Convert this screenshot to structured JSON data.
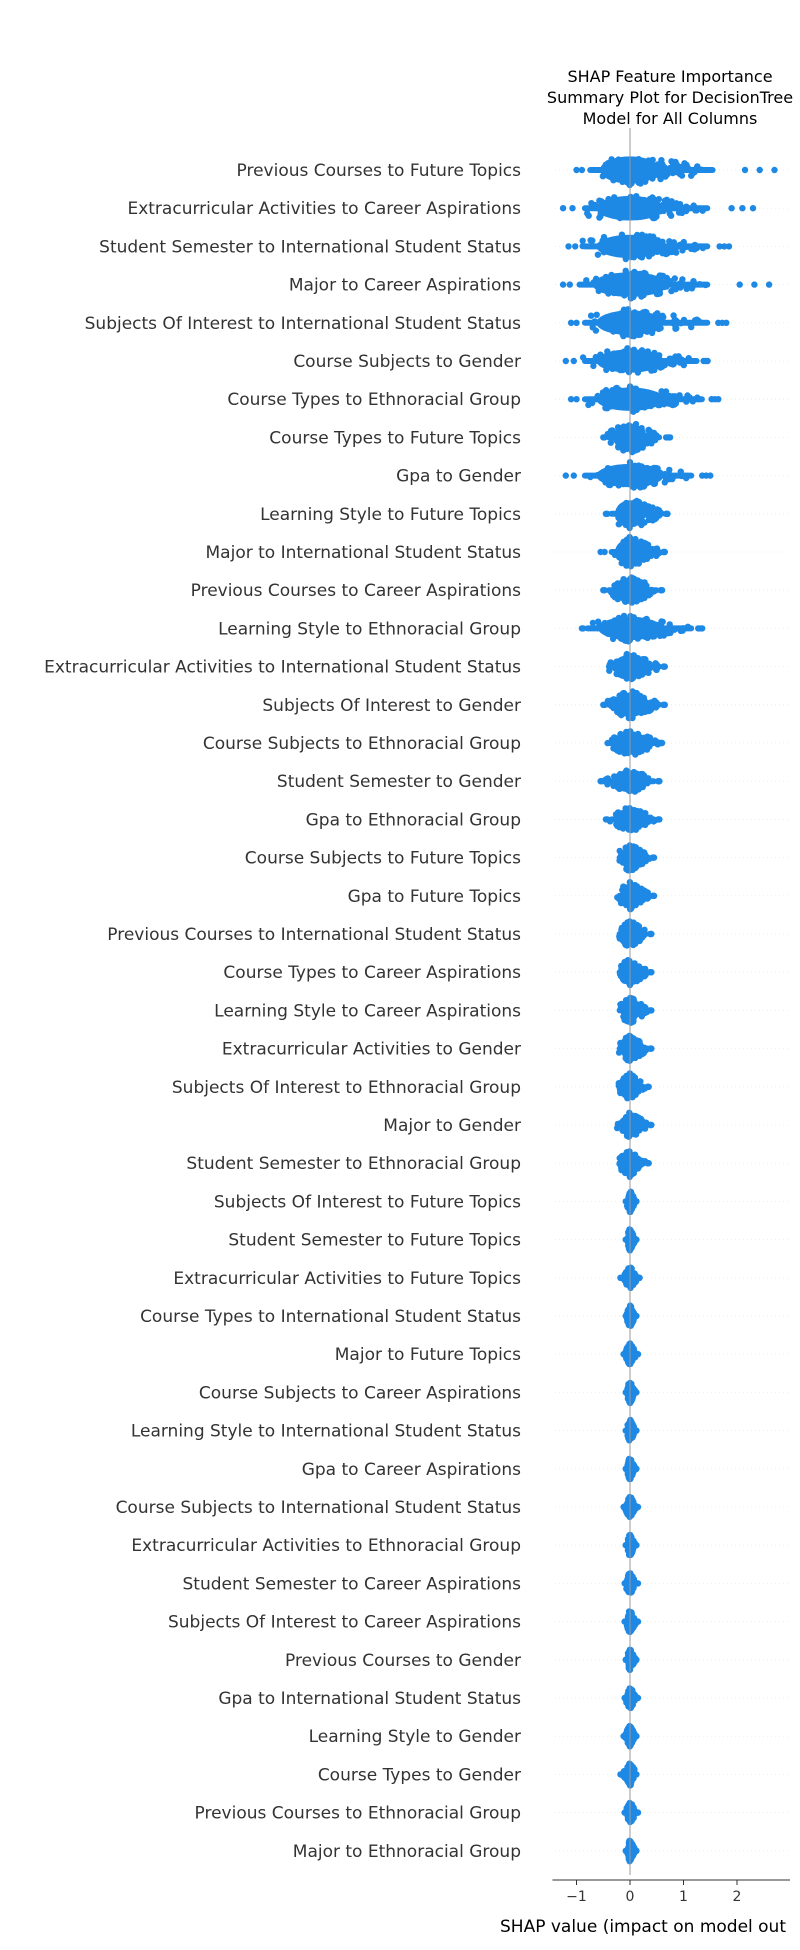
{
  "chart_data": {
    "type": "scatter",
    "subtype": "beeswarm",
    "title_lines": [
      "SHAP Feature Importance",
      "Summary Plot for DecisionTree",
      "Model for All Columns"
    ],
    "xlabel": "SHAP value (impact on model out",
    "x_ticks": [
      -1,
      0,
      1,
      2
    ],
    "x_tick_labels": [
      "−1",
      "0",
      "1",
      "2"
    ],
    "xlim": [
      -1.45,
      2.85
    ],
    "point_color": "#1e88e5",
    "grid": false,
    "features": [
      {
        "name": "Previous Courses to Future Topics",
        "min": -1.0,
        "max": 2.7,
        "core": [
          -0.8,
          1.6
        ],
        "halfheight": 0.42
      },
      {
        "name": "Extracurricular Activities to Career Aspirations",
        "min": -1.25,
        "max": 2.3,
        "core": [
          -0.9,
          1.5
        ],
        "halfheight": 0.38
      },
      {
        "name": "Student Semester to International Student Status",
        "min": -1.15,
        "max": 1.85,
        "core": [
          -0.9,
          1.5
        ],
        "halfheight": 0.36
      },
      {
        "name": "Major to Career Aspirations",
        "min": -1.25,
        "max": 2.6,
        "core": [
          -1.0,
          1.5
        ],
        "halfheight": 0.38
      },
      {
        "name": "Subjects Of Interest to International Student Status",
        "min": -1.1,
        "max": 1.8,
        "core": [
          -0.9,
          1.5
        ],
        "halfheight": 0.38
      },
      {
        "name": "Course Subjects to Gender",
        "min": -1.2,
        "max": 1.45,
        "core": [
          -0.9,
          1.3
        ],
        "halfheight": 0.36
      },
      {
        "name": "Course Types to Ethnoracial Group",
        "min": -1.1,
        "max": 1.65,
        "core": [
          -0.9,
          1.4
        ],
        "halfheight": 0.36
      },
      {
        "name": "Course Types to Future Topics",
        "min": -0.5,
        "max": 0.75,
        "core": [
          -0.45,
          0.6
        ],
        "halfheight": 0.42
      },
      {
        "name": "Gpa to Gender",
        "min": -1.2,
        "max": 1.5,
        "core": [
          -0.9,
          1.2
        ],
        "halfheight": 0.36
      },
      {
        "name": "Learning Style to Future Topics",
        "min": -0.45,
        "max": 0.7,
        "core": [
          -0.4,
          0.65
        ],
        "halfheight": 0.42
      },
      {
        "name": "Major to International Student Status",
        "min": -0.55,
        "max": 0.65,
        "core": [
          -0.4,
          0.6
        ],
        "halfheight": 0.4
      },
      {
        "name": "Previous Courses to Career Aspirations",
        "min": -0.5,
        "max": 0.6,
        "core": [
          -0.45,
          0.55
        ],
        "halfheight": 0.38
      },
      {
        "name": "Learning Style to Ethnoracial Group",
        "min": -0.9,
        "max": 1.35,
        "core": [
          -0.85,
          1.2
        ],
        "halfheight": 0.36
      },
      {
        "name": "Extracurricular Activities to International Student Status",
        "min": -0.45,
        "max": 0.65,
        "core": [
          -0.45,
          0.6
        ],
        "halfheight": 0.36
      },
      {
        "name": "Subjects Of Interest to Gender",
        "min": -0.5,
        "max": 0.65,
        "core": [
          -0.45,
          0.6
        ],
        "halfheight": 0.38
      },
      {
        "name": "Course Subjects to Ethnoracial Group",
        "min": -0.45,
        "max": 0.6,
        "core": [
          -0.45,
          0.55
        ],
        "halfheight": 0.36
      },
      {
        "name": "Student Semester to Gender",
        "min": -0.55,
        "max": 0.55,
        "core": [
          -0.5,
          0.5
        ],
        "halfheight": 0.34
      },
      {
        "name": "Gpa to Ethnoracial Group",
        "min": -0.45,
        "max": 0.55,
        "core": [
          -0.4,
          0.5
        ],
        "halfheight": 0.34
      },
      {
        "name": "Course Subjects to Future Topics",
        "min": -0.25,
        "max": 0.45,
        "core": [
          -0.25,
          0.4
        ],
        "halfheight": 0.36
      },
      {
        "name": "Gpa to Future Topics",
        "min": -0.25,
        "max": 0.45,
        "core": [
          -0.25,
          0.4
        ],
        "halfheight": 0.36
      },
      {
        "name": "Previous Courses to International Student Status",
        "min": -0.25,
        "max": 0.4,
        "core": [
          -0.25,
          0.35
        ],
        "halfheight": 0.36
      },
      {
        "name": "Course Types to Career Aspirations",
        "min": -0.25,
        "max": 0.4,
        "core": [
          -0.25,
          0.35
        ],
        "halfheight": 0.36
      },
      {
        "name": "Learning Style to Career Aspirations",
        "min": -0.25,
        "max": 0.4,
        "core": [
          -0.25,
          0.35
        ],
        "halfheight": 0.36
      },
      {
        "name": "Extracurricular Activities to Gender",
        "min": -0.25,
        "max": 0.4,
        "core": [
          -0.25,
          0.35
        ],
        "halfheight": 0.36
      },
      {
        "name": "Subjects Of Interest to Ethnoracial Group",
        "min": -0.25,
        "max": 0.35,
        "core": [
          -0.25,
          0.3
        ],
        "halfheight": 0.36
      },
      {
        "name": "Major to Gender",
        "min": -0.25,
        "max": 0.4,
        "core": [
          -0.25,
          0.35
        ],
        "halfheight": 0.36
      },
      {
        "name": "Student Semester to Ethnoracial Group",
        "min": -0.25,
        "max": 0.35,
        "core": [
          -0.25,
          0.3
        ],
        "halfheight": 0.36
      },
      {
        "name": "Subjects Of Interest to Future Topics",
        "min": -0.08,
        "max": 0.12,
        "core": [
          -0.06,
          0.1
        ],
        "halfheight": 0.3
      },
      {
        "name": "Student Semester to Future Topics",
        "min": -0.08,
        "max": 0.12,
        "core": [
          -0.06,
          0.1
        ],
        "halfheight": 0.3
      },
      {
        "name": "Extracurricular Activities to Future Topics",
        "min": -0.18,
        "max": 0.18,
        "core": [
          -0.15,
          0.15
        ],
        "halfheight": 0.3
      },
      {
        "name": "Course Types to International Student Status",
        "min": -0.08,
        "max": 0.12,
        "core": [
          -0.06,
          0.1
        ],
        "halfheight": 0.3
      },
      {
        "name": "Major to Future Topics",
        "min": -0.12,
        "max": 0.15,
        "core": [
          -0.1,
          0.12
        ],
        "halfheight": 0.3
      },
      {
        "name": "Course Subjects to Career Aspirations",
        "min": -0.08,
        "max": 0.12,
        "core": [
          -0.06,
          0.1
        ],
        "halfheight": 0.3
      },
      {
        "name": "Learning Style to International Student Status",
        "min": -0.08,
        "max": 0.12,
        "core": [
          -0.06,
          0.1
        ],
        "halfheight": 0.3
      },
      {
        "name": "Gpa to Career Aspirations",
        "min": -0.08,
        "max": 0.12,
        "core": [
          -0.06,
          0.1
        ],
        "halfheight": 0.3
      },
      {
        "name": "Course Subjects to International Student Status",
        "min": -0.12,
        "max": 0.15,
        "core": [
          -0.1,
          0.12
        ],
        "halfheight": 0.3
      },
      {
        "name": "Extracurricular Activities to Ethnoracial Group",
        "min": -0.08,
        "max": 0.12,
        "core": [
          -0.06,
          0.1
        ],
        "halfheight": 0.3
      },
      {
        "name": "Student Semester to Career Aspirations",
        "min": -0.1,
        "max": 0.15,
        "core": [
          -0.08,
          0.12
        ],
        "halfheight": 0.3
      },
      {
        "name": "Subjects Of Interest to Career Aspirations",
        "min": -0.1,
        "max": 0.15,
        "core": [
          -0.08,
          0.12
        ],
        "halfheight": 0.3
      },
      {
        "name": "Previous Courses to Gender",
        "min": -0.08,
        "max": 0.12,
        "core": [
          -0.06,
          0.1
        ],
        "halfheight": 0.3
      },
      {
        "name": "Gpa to International Student Status",
        "min": -0.1,
        "max": 0.15,
        "core": [
          -0.08,
          0.12
        ],
        "halfheight": 0.3
      },
      {
        "name": "Learning Style to Gender",
        "min": -0.12,
        "max": 0.12,
        "core": [
          -0.1,
          0.1
        ],
        "halfheight": 0.3
      },
      {
        "name": "Course Types to Gender",
        "min": -0.18,
        "max": 0.12,
        "core": [
          -0.15,
          0.1
        ],
        "halfheight": 0.3
      },
      {
        "name": "Previous Courses to Ethnoracial Group",
        "min": -0.1,
        "max": 0.15,
        "core": [
          -0.08,
          0.12
        ],
        "halfheight": 0.3
      },
      {
        "name": "Major to Ethnoracial Group",
        "min": -0.08,
        "max": 0.12,
        "core": [
          -0.06,
          0.1
        ],
        "halfheight": 0.3
      }
    ]
  }
}
